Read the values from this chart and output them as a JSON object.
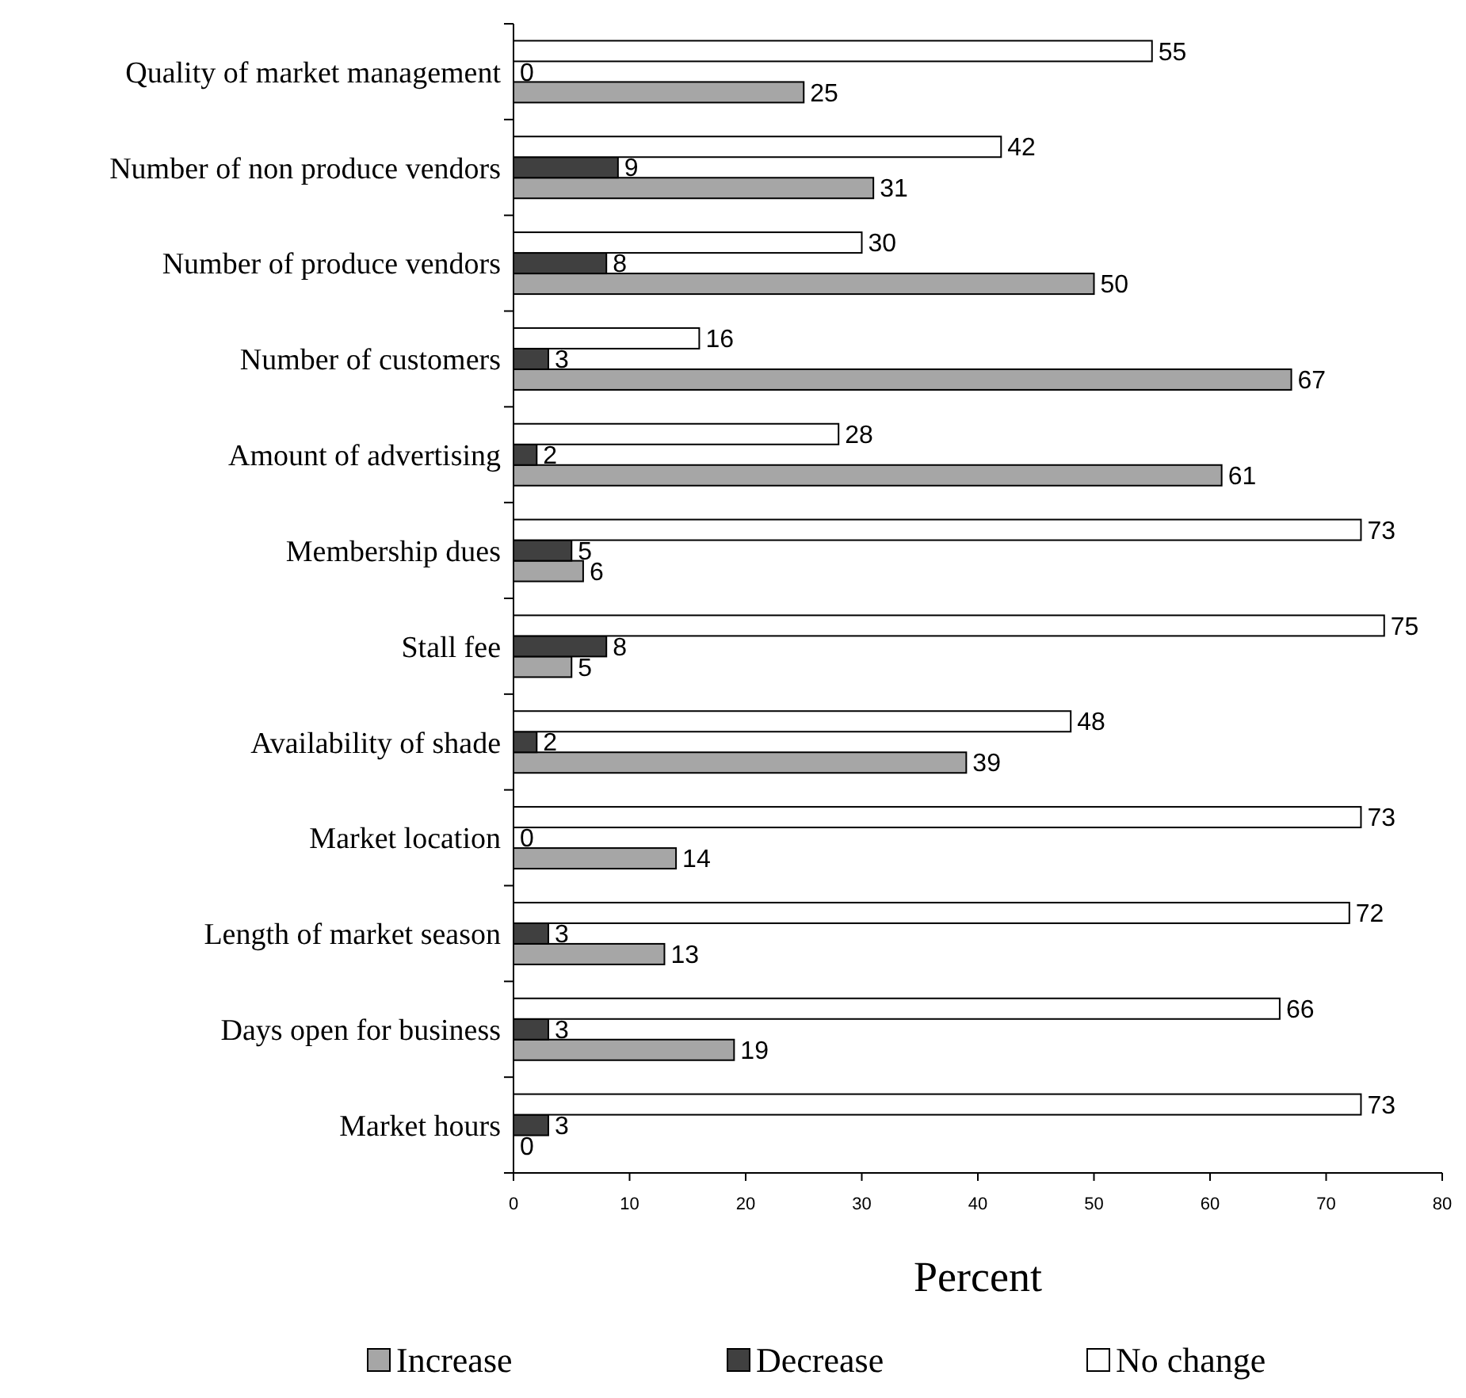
{
  "chart_data": {
    "type": "bar",
    "orientation": "horizontal",
    "categories": [
      "Quality of market management",
      "Number of non produce vendors",
      "Number of produce vendors",
      "Number of customers",
      "Amount of advertising",
      "Membership dues",
      "Stall fee",
      "Availability of shade",
      "Market location",
      "Length of market season",
      "Days open for business",
      "Market hours"
    ],
    "series": [
      {
        "name": "Increase",
        "color": "#a6a6a6",
        "values": [
          25,
          31,
          50,
          67,
          61,
          6,
          5,
          39,
          14,
          13,
          19,
          0
        ]
      },
      {
        "name": "Decrease",
        "color": "#404040",
        "values": [
          0,
          9,
          8,
          3,
          2,
          5,
          8,
          2,
          0,
          3,
          3,
          3
        ]
      },
      {
        "name": "No change",
        "color": "#ffffff",
        "values": [
          55,
          42,
          30,
          16,
          28,
          73,
          75,
          48,
          73,
          72,
          66,
          73
        ]
      }
    ],
    "xlim": [
      0,
      80
    ],
    "xticks": [
      0,
      10,
      20,
      30,
      40,
      50,
      60,
      70,
      80
    ],
    "xlabel": "Percent",
    "legend": "bottom",
    "data_labels": true
  }
}
